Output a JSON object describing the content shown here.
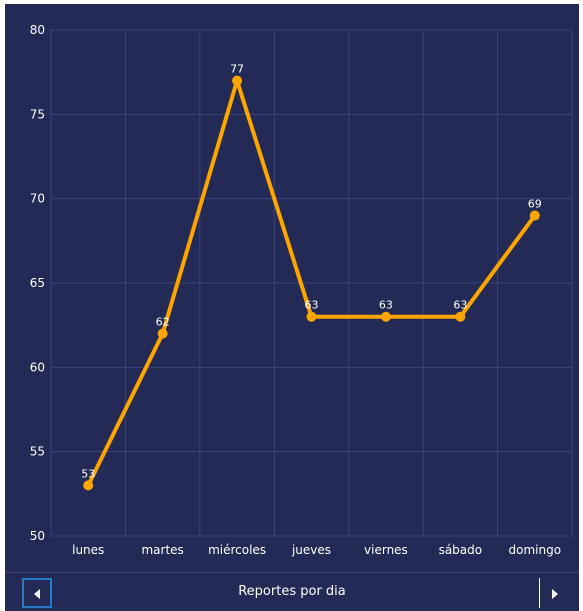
{
  "colors": {
    "background": "#222a55",
    "grid": "#3b4578",
    "line": "#ffa500",
    "text": "#ffffff",
    "nav_active_border": "#2a79c9"
  },
  "chart_data": {
    "type": "line",
    "categories": [
      "lunes",
      "martes",
      "miércoles",
      "jueves",
      "viernes",
      "sábado",
      "domingo"
    ],
    "series": [
      {
        "values": [
          53,
          62,
          77,
          63,
          63,
          63,
          69
        ]
      }
    ],
    "ylim": [
      50,
      80
    ],
    "yticks": [
      50,
      55,
      60,
      65,
      70,
      75,
      80
    ],
    "grid": true,
    "data_labels": true
  },
  "footer": {
    "title": "Reportes por dia",
    "prev_icon": "caret-left-icon",
    "next_icon": "caret-right-icon"
  }
}
